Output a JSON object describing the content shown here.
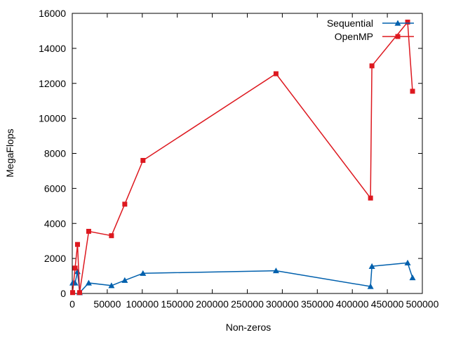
{
  "chart_data": {
    "type": "line",
    "title": "",
    "xlabel": "Non-zeros",
    "ylabel": "MegaFlops",
    "xlim": [
      0,
      500000
    ],
    "ylim": [
      0,
      16000
    ],
    "x_ticks": [
      0,
      50000,
      100000,
      150000,
      200000,
      250000,
      300000,
      350000,
      400000,
      450000,
      500000
    ],
    "y_ticks": [
      0,
      2000,
      4000,
      6000,
      8000,
      10000,
      12000,
      14000,
      16000
    ],
    "x_tick_labels": [
      "0",
      "50000",
      "100000",
      "150000",
      "200000",
      "250000",
      "300000",
      "350000",
      "400000",
      "450000",
      "500000"
    ],
    "y_tick_labels": [
      "0",
      "2000",
      "4000",
      "6000",
      "8000",
      "10000",
      "12000",
      "14000",
      "16000"
    ],
    "grid": false,
    "legend_position": "top-right",
    "series": [
      {
        "name": "Sequential",
        "color": "#0060ad",
        "marker": "triangle",
        "points": [
          [
            500,
            600
          ],
          [
            4000,
            600
          ],
          [
            7500,
            1250
          ],
          [
            10500,
            50
          ],
          [
            23500,
            600
          ],
          [
            56000,
            450
          ],
          [
            75000,
            750
          ],
          [
            101000,
            1150
          ],
          [
            291000,
            1300
          ],
          [
            426000,
            400
          ],
          [
            428000,
            1550
          ],
          [
            479000,
            1750
          ],
          [
            486000,
            900
          ]
        ]
      },
      {
        "name": "OpenMP",
        "color": "#dd181f",
        "marker": "square",
        "points": [
          [
            500,
            50
          ],
          [
            4000,
            1450
          ],
          [
            7500,
            2800
          ],
          [
            10500,
            50
          ],
          [
            23500,
            3550
          ],
          [
            56000,
            3300
          ],
          [
            75000,
            5100
          ],
          [
            101000,
            7600
          ],
          [
            291000,
            12550
          ],
          [
            426000,
            5450
          ],
          [
            428000,
            13000
          ],
          [
            479000,
            15500
          ],
          [
            486000,
            11550
          ]
        ]
      }
    ]
  }
}
